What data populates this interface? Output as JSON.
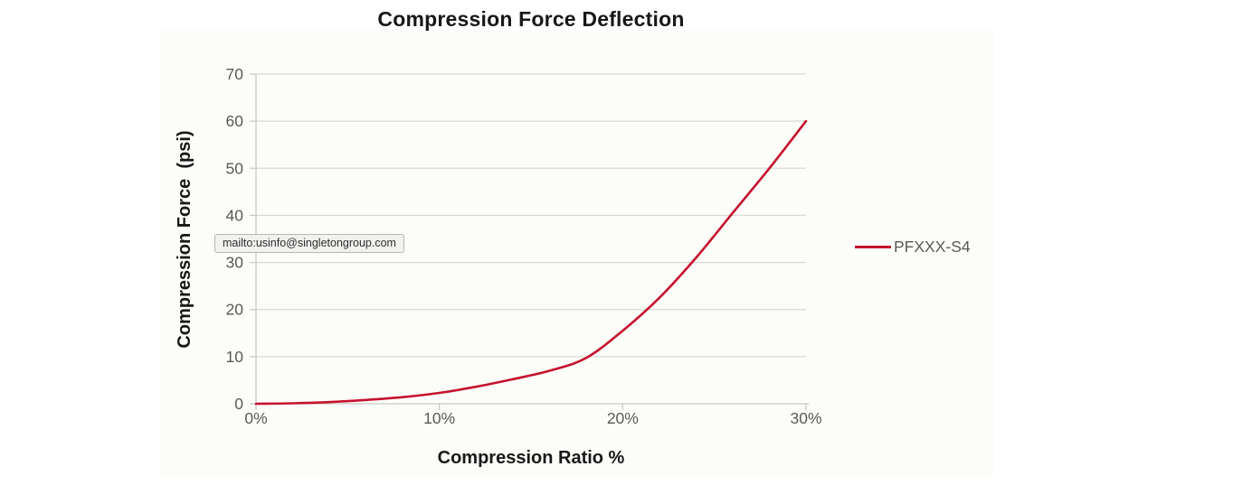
{
  "chart_data": {
    "type": "line",
    "title": "Compression Force Deflection",
    "xlabel": "Compression Ratio %",
    "ylabel": "Compression Force  (psi)",
    "xlim": [
      0,
      30
    ],
    "ylim": [
      0,
      70
    ],
    "x_ticks": [
      "0%",
      "10%",
      "20%",
      "30%"
    ],
    "x_tick_values": [
      0,
      10,
      20,
      30
    ],
    "y_ticks": [
      "0",
      "10",
      "20",
      "30",
      "40",
      "50",
      "60",
      "70"
    ],
    "y_tick_values": [
      0,
      10,
      20,
      30,
      40,
      50,
      60,
      70
    ],
    "grid": true,
    "legend_position": "right",
    "series": [
      {
        "name": "PFXXX-S4",
        "color": "#c5122d",
        "x": [
          0,
          2,
          4,
          6,
          8,
          10,
          12,
          14,
          16,
          18,
          20,
          22,
          24,
          26,
          28,
          30
        ],
        "y": [
          0,
          0.1,
          0.35,
          0.8,
          1.4,
          2.3,
          3.6,
          5.2,
          7.0,
          9.7,
          15.5,
          22.5,
          31,
          40.5,
          50,
          60
        ]
      }
    ],
    "colors": {
      "grid": "#d9d9d5",
      "axis": "#c9c9c5",
      "tick_label": "#595959",
      "text": "#181818",
      "panel_bg": "#fcfcf9"
    }
  },
  "tooltip": {
    "text": "mailto:usinfo@singletongroup.com"
  }
}
